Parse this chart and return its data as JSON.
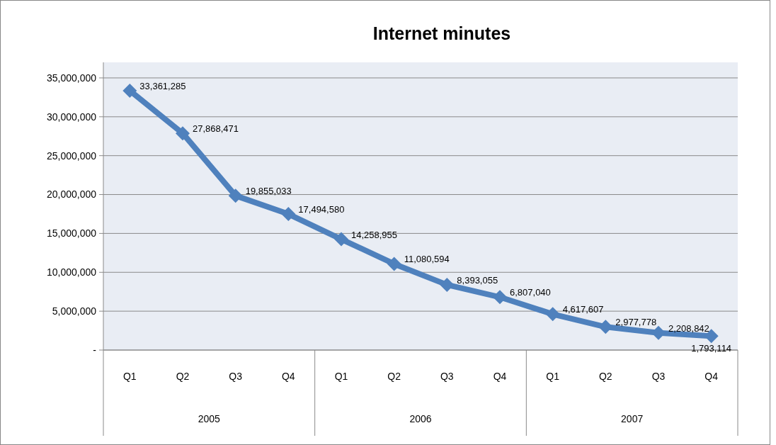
{
  "chart_data": {
    "type": "line",
    "title": "Internet minutes",
    "categories": [
      "Q1",
      "Q2",
      "Q3",
      "Q4",
      "Q1",
      "Q2",
      "Q3",
      "Q4",
      "Q1",
      "Q2",
      "Q3",
      "Q4"
    ],
    "annotations": [
      "2005",
      "2006",
      "2007"
    ],
    "series": [
      {
        "color": "#4f81bd",
        "values": [
          33361285,
          27868471,
          19855033,
          17494580,
          14258955,
          11080594,
          8393055,
          6807040,
          4617607,
          2977778,
          2208842,
          1793114
        ],
        "value_labels": [
          "33,361,285",
          "27,868,471",
          "19,855,033",
          "17,494,580",
          "14,258,955",
          "11,080,594",
          "8,393,055",
          "6,807,040",
          "4,617,607",
          "2,977,778",
          "2,208,842",
          "1,793,114"
        ]
      }
    ],
    "ylim": [
      0,
      37000000
    ],
    "yticks": [
      {
        "value": 0,
        "label": "-"
      },
      {
        "value": 5000000,
        "label": "5,000,000"
      },
      {
        "value": 10000000,
        "label": "10,000,000"
      },
      {
        "value": 15000000,
        "label": "15,000,000"
      },
      {
        "value": 20000000,
        "label": "20,000,000"
      },
      {
        "value": 25000000,
        "label": "25,000,000"
      },
      {
        "value": 30000000,
        "label": "30,000,000"
      },
      {
        "value": 35000000,
        "label": "35,000,000"
      }
    ],
    "grid": "y",
    "marker": "diamond",
    "line_style": "solid"
  }
}
